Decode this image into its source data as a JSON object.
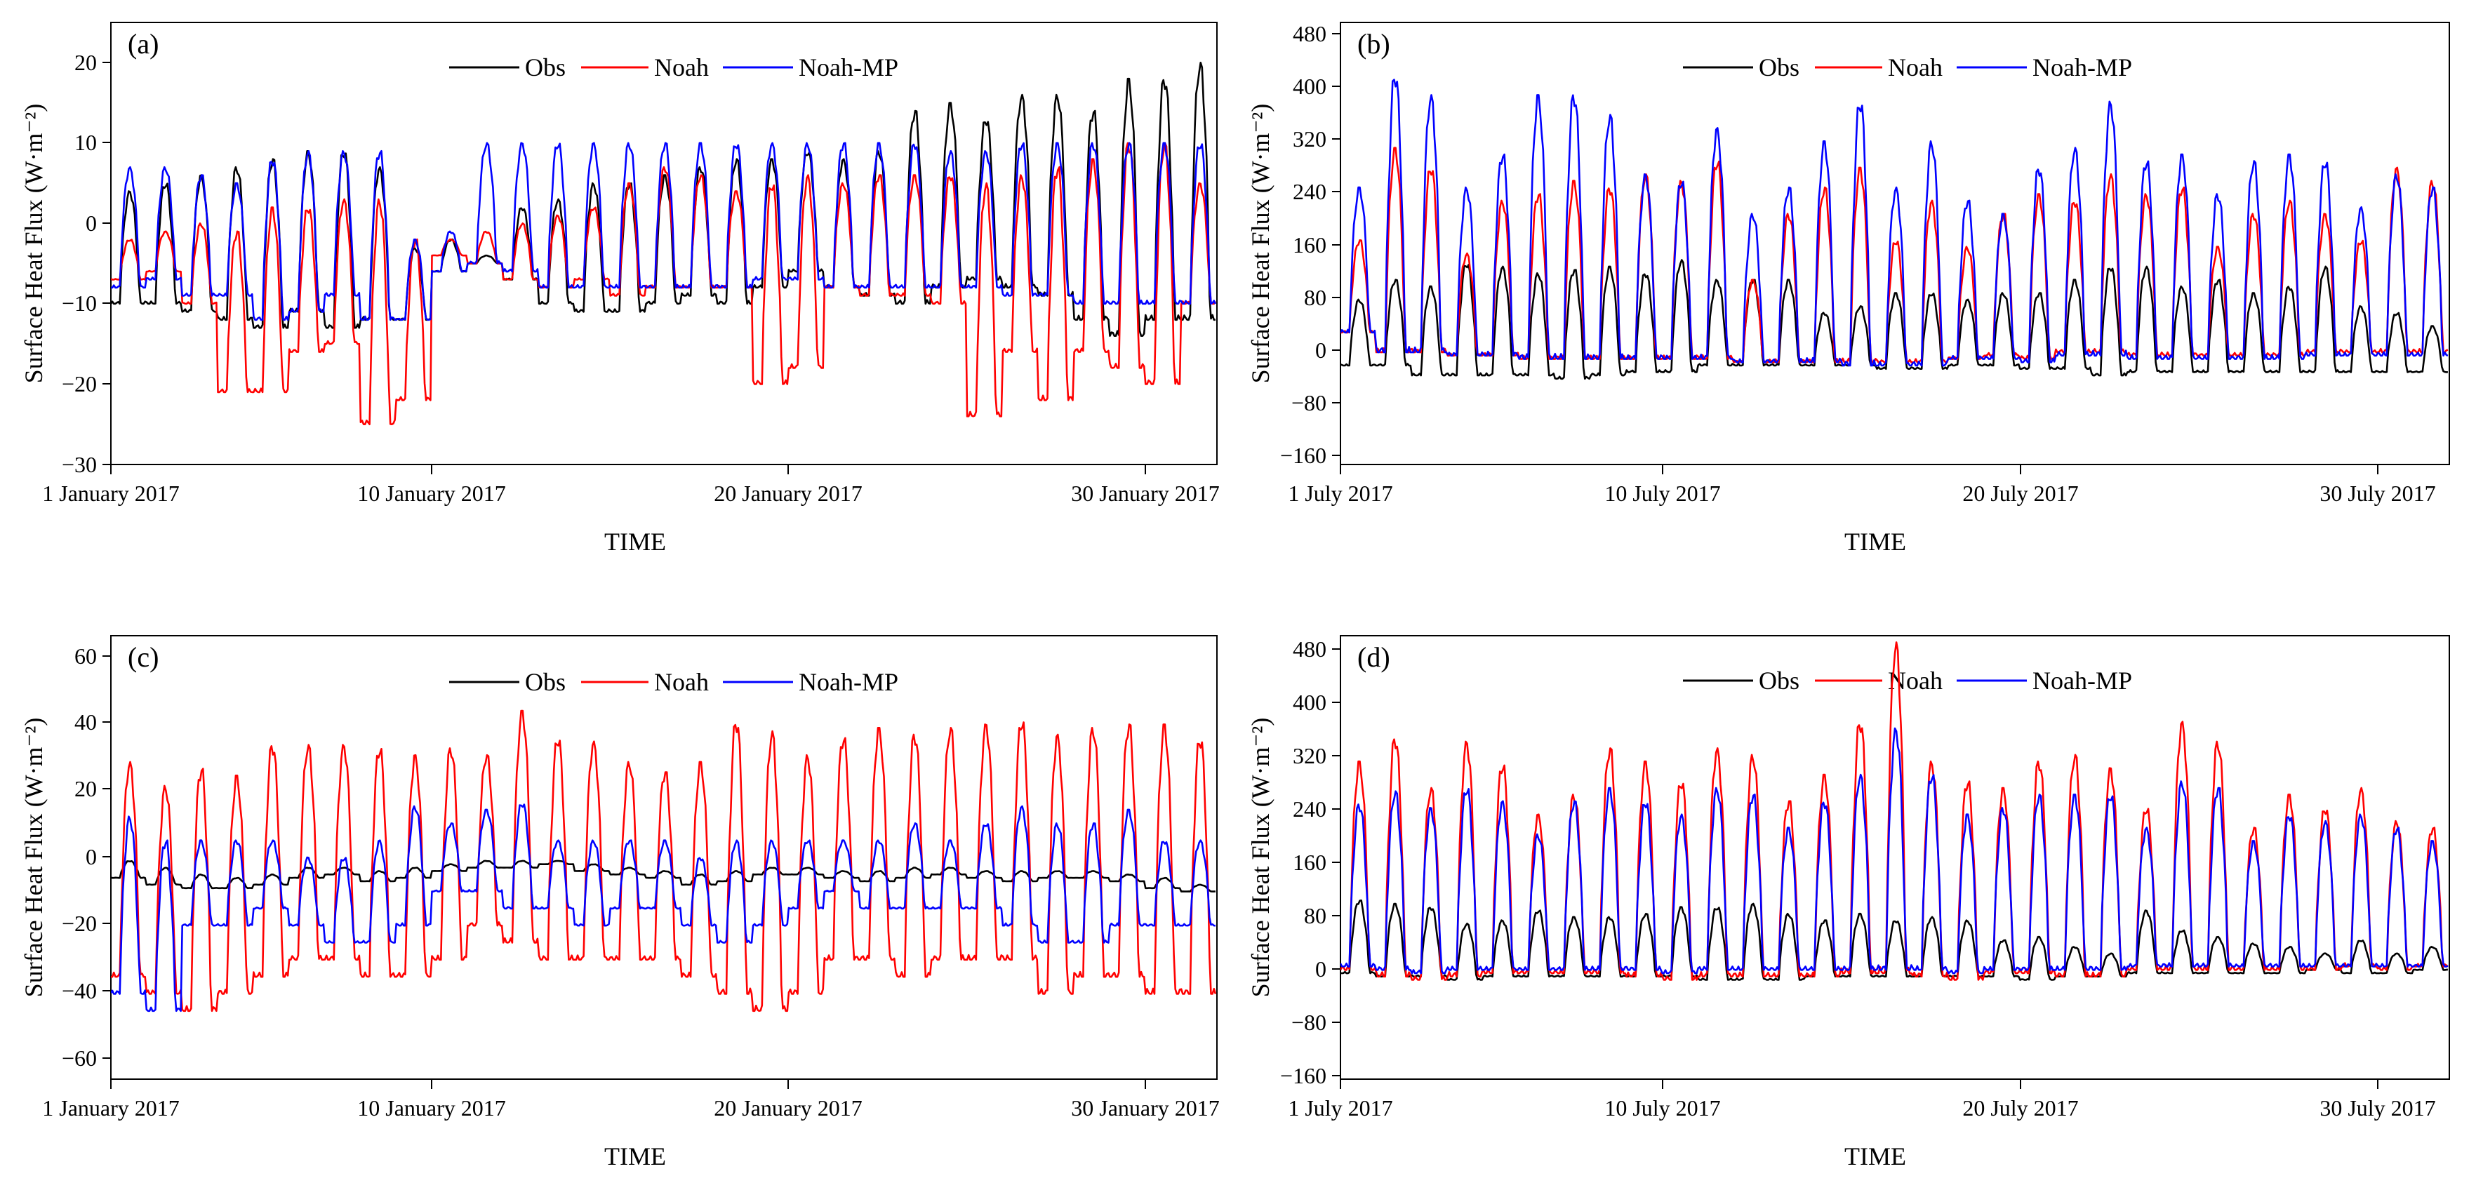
{
  "colors": {
    "obs": "#000000",
    "noah": "#ff0000",
    "noahmp": "#0000ff"
  },
  "legend": {
    "obs": "Obs",
    "noah": "Noah",
    "noahmp": "Noah-MP"
  },
  "chart_data": [
    {
      "type": "line",
      "panel_label": "(a)",
      "xlabel": "TIME",
      "ylabel": "Surface Heat Flux (W·m⁻²)",
      "xlim": [
        0,
        31
      ],
      "ylim": [
        -30,
        25
      ],
      "yticks": [
        "20",
        "10",
        "0",
        "−10",
        "−20",
        "−30"
      ],
      "xticks": [
        "1 January 2017",
        "10 January 2017",
        "20 January 2017",
        "30 January 2017"
      ],
      "legend_position": "top-center",
      "series": [
        {
          "name": "Obs",
          "key": "obs",
          "daily_min": [
            -10,
            -10,
            -11,
            -12,
            -13,
            -11,
            -13,
            -12,
            -12,
            -6,
            -5,
            -7,
            -10,
            -11,
            -11,
            -10,
            -9,
            -10,
            -8,
            -6,
            -8,
            -9,
            -10,
            -8,
            -7,
            -8,
            -9,
            -12,
            -14,
            -12,
            -12
          ],
          "daily_max": [
            4,
            5,
            6,
            7,
            8,
            9,
            9,
            7,
            -3,
            -2,
            -4,
            2,
            3,
            5,
            5,
            6,
            7,
            8,
            8,
            9,
            8,
            9,
            14,
            15,
            13,
            16,
            16,
            14,
            18,
            18,
            20
          ]
        },
        {
          "name": "Noah",
          "key": "noah",
          "daily_min": [
            -7,
            -6,
            -10,
            -21,
            -21,
            -16,
            -15,
            -25,
            -22,
            -4,
            -5,
            -7,
            -8,
            -7,
            -9,
            -8,
            -8,
            -8,
            -20,
            -18,
            -8,
            -9,
            -9,
            -10,
            -24,
            -16,
            -22,
            -16,
            -18,
            -20,
            -10
          ],
          "daily_max": [
            -2,
            -1,
            0,
            -1,
            2,
            2,
            3,
            3,
            -2,
            -2,
            -1,
            0,
            1,
            2,
            5,
            7,
            6,
            4,
            5,
            6,
            5,
            6,
            6,
            6,
            5,
            6,
            7,
            8,
            10,
            10,
            5
          ]
        },
        {
          "name": "Noah-MP",
          "key": "noahmp",
          "daily_min": [
            -8,
            -7,
            -9,
            -9,
            -12,
            -11,
            -9,
            -12,
            -12,
            -6,
            -5,
            -6,
            -8,
            -8,
            -8,
            -8,
            -8,
            -8,
            -7,
            -7,
            -8,
            -8,
            -8,
            -8,
            -8,
            -9,
            -9,
            -10,
            -10,
            -10,
            -10
          ],
          "daily_max": [
            7,
            7,
            6,
            5,
            8,
            9,
            9,
            9,
            -2,
            -1,
            10,
            10,
            10,
            10,
            10,
            10,
            10,
            10,
            10,
            10,
            10,
            10,
            10,
            9,
            9,
            10,
            10,
            10,
            10,
            10,
            10
          ]
        }
      ]
    },
    {
      "type": "line",
      "panel_label": "(b)",
      "xlabel": "TIME",
      "ylabel": "Surface Heat Flux (W·m⁻²)",
      "xlim": [
        0,
        31
      ],
      "ylim": [
        -180,
        490
      ],
      "yticks": [
        "480",
        "400",
        "320",
        "240",
        "160",
        "80",
        "0",
        "−80",
        "−160"
      ],
      "xticks": [
        "1 July 2017",
        "10 July 2017",
        "20 July 2017",
        "30 July 2017"
      ],
      "legend_position": "top-center",
      "series": [
        {
          "name": "Obs",
          "key": "obs",
          "daily_min": [
            -30,
            -30,
            -45,
            -45,
            -45,
            -45,
            -50,
            -45,
            -40,
            -40,
            -30,
            -30,
            -30,
            -30,
            -30,
            -35,
            -35,
            -30,
            -30,
            -35,
            -35,
            -45,
            -40,
            -40,
            -40,
            -40,
            -40,
            -40,
            -40,
            -40,
            -40
          ],
          "daily_max": [
            70,
            100,
            90,
            125,
            120,
            110,
            115,
            120,
            110,
            130,
            100,
            100,
            100,
            50,
            60,
            80,
            80,
            70,
            80,
            80,
            100,
            120,
            120,
            90,
            100,
            80,
            90,
            120,
            60,
            50,
            30
          ]
        },
        {
          "name": "Noah",
          "key": "noah",
          "daily_min": [
            20,
            -10,
            -10,
            -15,
            -15,
            -20,
            -20,
            -20,
            -20,
            -20,
            -20,
            -25,
            -25,
            -25,
            -25,
            -25,
            -25,
            -20,
            -15,
            -20,
            -10,
            -10,
            -15,
            -15,
            -15,
            -15,
            -15,
            -10,
            -10,
            -10,
            -10
          ],
          "daily_max": [
            160,
            300,
            270,
            140,
            220,
            230,
            250,
            240,
            260,
            250,
            280,
            100,
            200,
            240,
            270,
            160,
            220,
            150,
            200,
            230,
            220,
            260,
            230,
            240,
            150,
            200,
            220,
            200,
            160,
            270,
            250
          ]
        },
        {
          "name": "Noah-MP",
          "key": "noahmp",
          "daily_min": [
            20,
            -10,
            -10,
            -15,
            -15,
            -20,
            -20,
            -20,
            -20,
            -20,
            -20,
            -25,
            -25,
            -25,
            -30,
            -30,
            -30,
            -20,
            -20,
            -25,
            -15,
            -15,
            -20,
            -20,
            -20,
            -20,
            -20,
            -15,
            -15,
            -15,
            -15
          ],
          "daily_max": [
            240,
            410,
            380,
            240,
            290,
            380,
            380,
            350,
            260,
            250,
            330,
            200,
            240,
            310,
            370,
            240,
            310,
            220,
            200,
            270,
            300,
            370,
            280,
            290,
            230,
            280,
            290,
            280,
            210,
            260,
            240
          ]
        }
      ]
    },
    {
      "type": "line",
      "panel_label": "(c)",
      "xlabel": "TIME",
      "ylabel": "Surface Heat Flux (W·m⁻²)",
      "xlim": [
        0,
        31
      ],
      "ylim": [
        -65,
        65
      ],
      "yticks": [
        "60",
        "40",
        "20",
        "0",
        "−20",
        "−40",
        "−60"
      ],
      "xticks": [
        "1 January 2017",
        "10 January 2017",
        "20 January 2017",
        "30 January 2017"
      ],
      "legend_position": "top-center",
      "series": [
        {
          "name": "Obs",
          "key": "obs",
          "daily_min": [
            -6,
            -8,
            -9,
            -9,
            -8,
            -6,
            -5,
            -7,
            -6,
            -4,
            -3,
            -3,
            -2,
            -4,
            -5,
            -6,
            -8,
            -7,
            -5,
            -5,
            -6,
            -7,
            -6,
            -5,
            -6,
            -7,
            -6,
            -6,
            -7,
            -9,
            -10
          ],
          "daily_max": [
            -1,
            -3,
            -5,
            -6,
            -5,
            -3,
            -3,
            -4,
            -3,
            -2,
            -1,
            -1,
            -1,
            -2,
            -3,
            -4,
            -5,
            -4,
            -3,
            -3,
            -4,
            -4,
            -3,
            -3,
            -4,
            -4,
            -4,
            -4,
            -5,
            -6,
            -8
          ]
        },
        {
          "name": "Noah",
          "key": "noah",
          "daily_min": [
            -35,
            -40,
            -45,
            -40,
            -35,
            -30,
            -30,
            -35,
            -35,
            -30,
            -20,
            -25,
            -30,
            -30,
            -30,
            -30,
            -35,
            -40,
            -45,
            -40,
            -30,
            -30,
            -35,
            -30,
            -30,
            -30,
            -40,
            -35,
            -35,
            -40,
            -40
          ],
          "daily_max": [
            28,
            21,
            26,
            24,
            33,
            33,
            33,
            32,
            30,
            32,
            30,
            43,
            35,
            34,
            28,
            25,
            28,
            40,
            37,
            30,
            35,
            38,
            36,
            38,
            39,
            40,
            36,
            38,
            39,
            39,
            35
          ]
        },
        {
          "name": "Noah-MP",
          "key": "noahmp",
          "daily_min": [
            -40,
            -45,
            -20,
            -20,
            -15,
            -20,
            -25,
            -25,
            -20,
            -10,
            -10,
            -15,
            -15,
            -20,
            -15,
            -15,
            -20,
            -25,
            -20,
            -15,
            -10,
            -15,
            -15,
            -15,
            -15,
            -20,
            -25,
            -25,
            -20,
            -20,
            -20
          ],
          "daily_max": [
            12,
            5,
            5,
            5,
            5,
            0,
            0,
            5,
            15,
            10,
            14,
            16,
            5,
            5,
            5,
            5,
            0,
            5,
            5,
            5,
            5,
            5,
            10,
            5,
            10,
            15,
            10,
            10,
            14,
            5,
            5
          ]
        }
      ]
    },
    {
      "type": "line",
      "panel_label": "(d)",
      "xlabel": "TIME",
      "ylabel": "Surface Heat Flux (W·m⁻²)",
      "xlim": [
        0,
        31
      ],
      "ylim": [
        -180,
        490
      ],
      "yticks": [
        "480",
        "400",
        "320",
        "240",
        "160",
        "80",
        "0",
        "−80",
        "−160"
      ],
      "xticks": [
        "1 July 2017",
        "10 July 2017",
        "20 July 2017",
        "30 July 2017"
      ],
      "legend_position": "top-center",
      "series": [
        {
          "name": "Obs",
          "key": "obs",
          "daily_min": [
            -20,
            -25,
            -25,
            -30,
            -25,
            -25,
            -25,
            -25,
            -25,
            -25,
            -30,
            -30,
            -30,
            -25,
            -25,
            -25,
            -25,
            -25,
            -25,
            -30,
            -25,
            -25,
            -20,
            -20,
            -20,
            -20,
            -20,
            -15,
            -20,
            -20,
            -15
          ],
          "daily_max": [
            90,
            85,
            80,
            55,
            60,
            75,
            65,
            65,
            70,
            80,
            80,
            85,
            70,
            60,
            70,
            60,
            65,
            60,
            30,
            35,
            20,
            10,
            75,
            45,
            35,
            25,
            20,
            10,
            30,
            10,
            20
          ]
        },
        {
          "name": "Noah",
          "key": "noah",
          "daily_min": [
            -15,
            -25,
            -30,
            -25,
            -20,
            -20,
            -20,
            -20,
            -25,
            -30,
            -25,
            -25,
            -25,
            -25,
            -20,
            -20,
            -25,
            -30,
            -20,
            -20,
            -25,
            -25,
            -15,
            -15,
            -15,
            -15,
            -15,
            -15,
            -10,
            -15,
            -10
          ],
          "daily_max": [
            300,
            335,
            260,
            330,
            295,
            220,
            250,
            320,
            300,
            270,
            320,
            310,
            240,
            280,
            360,
            480,
            300,
            270,
            260,
            300,
            310,
            290,
            230,
            360,
            330,
            200,
            250,
            230,
            260,
            210,
            200
          ]
        },
        {
          "name": "Noah-MP",
          "key": "noahmp",
          "daily_min": [
            -10,
            -15,
            -20,
            -15,
            -15,
            -15,
            -15,
            -15,
            -15,
            -20,
            -15,
            -15,
            -15,
            -15,
            -15,
            -15,
            -15,
            -20,
            -15,
            -15,
            -15,
            -15,
            -10,
            -10,
            -10,
            -10,
            -10,
            -10,
            -10,
            -10,
            -10
          ],
          "daily_max": [
            235,
            255,
            230,
            260,
            240,
            190,
            240,
            260,
            240,
            220,
            260,
            250,
            200,
            240,
            280,
            350,
            280,
            220,
            230,
            250,
            250,
            250,
            200,
            270,
            260,
            180,
            220,
            210,
            220,
            200,
            180
          ]
        }
      ]
    }
  ]
}
